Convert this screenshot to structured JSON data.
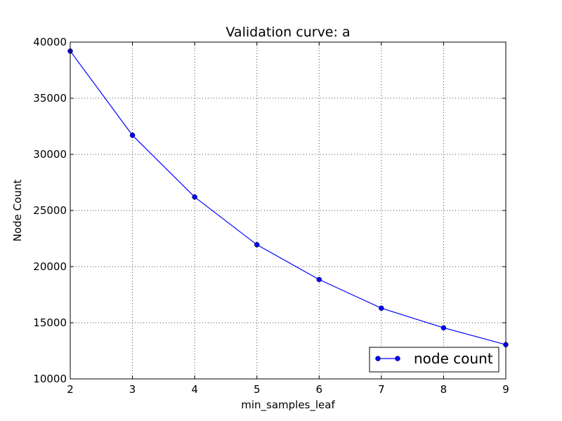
{
  "chart_data": {
    "type": "line",
    "title": "Validation curve: a",
    "xlabel": "min_samples_leaf",
    "ylabel": "Node Count",
    "x": [
      2,
      3,
      4,
      5,
      6,
      7,
      8,
      9
    ],
    "series": [
      {
        "name": "node count",
        "color": "#0000ff",
        "marker": "circle",
        "values": [
          39200,
          31700,
          26200,
          21950,
          18850,
          16300,
          14550,
          13050
        ]
      }
    ],
    "xlim": [
      2,
      9
    ],
    "ylim": [
      10000,
      40000
    ],
    "xticks": [
      2,
      3,
      4,
      5,
      6,
      7,
      8,
      9
    ],
    "yticks": [
      10000,
      15000,
      20000,
      25000,
      30000,
      35000,
      40000
    ],
    "xtick_labels": [
      "2",
      "3",
      "4",
      "5",
      "6",
      "7",
      "8",
      "9"
    ],
    "ytick_labels": [
      "10000",
      "15000",
      "20000",
      "25000",
      "30000",
      "35000",
      "40000"
    ],
    "grid": true,
    "legend_position": "lower-right"
  }
}
